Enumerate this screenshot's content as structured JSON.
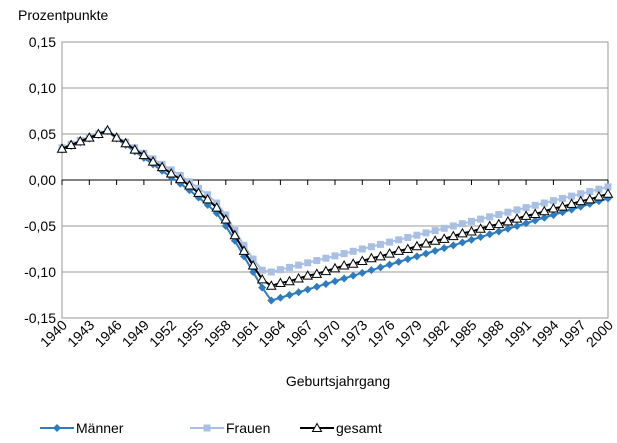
{
  "chart_data": {
    "type": "line",
    "ylabel": "Prozentpunkte",
    "xlabel": "Geburtsjahrgang",
    "x": [
      1940,
      1941,
      1942,
      1943,
      1944,
      1945,
      1946,
      1947,
      1948,
      1949,
      1950,
      1951,
      1952,
      1953,
      1954,
      1955,
      1956,
      1957,
      1958,
      1959,
      1960,
      1961,
      1962,
      1963,
      1964,
      1965,
      1966,
      1967,
      1968,
      1969,
      1970,
      1971,
      1972,
      1973,
      1974,
      1975,
      1976,
      1977,
      1978,
      1979,
      1980,
      1981,
      1982,
      1983,
      1984,
      1985,
      1986,
      1987,
      1988,
      1989,
      1990,
      1991,
      1992,
      1993,
      1994,
      1995,
      1996,
      1997,
      1998,
      1999,
      2000
    ],
    "series": [
      {
        "name": "Männer",
        "color": "#2e7cbf",
        "marker": "diamond",
        "values": [
          0.033,
          0.037,
          0.041,
          0.045,
          0.049,
          0.053,
          0.045,
          0.038,
          0.031,
          0.024,
          0.017,
          0.01,
          0.003,
          -0.004,
          -0.011,
          -0.019,
          -0.027,
          -0.036,
          -0.05,
          -0.066,
          -0.083,
          -0.1,
          -0.117,
          -0.131,
          -0.128,
          -0.125,
          -0.122,
          -0.119,
          -0.116,
          -0.113,
          -0.11,
          -0.107,
          -0.104,
          -0.101,
          -0.098,
          -0.095,
          -0.092,
          -0.089,
          -0.086,
          -0.083,
          -0.08,
          -0.077,
          -0.074,
          -0.071,
          -0.068,
          -0.065,
          -0.062,
          -0.059,
          -0.056,
          -0.053,
          -0.05,
          -0.047,
          -0.044,
          -0.041,
          -0.038,
          -0.035,
          -0.032,
          -0.029,
          -0.026,
          -0.023,
          -0.02
        ]
      },
      {
        "name": "Frauen",
        "color": "#a7c0e3",
        "marker": "square",
        "values": [
          0.035,
          0.039,
          0.043,
          0.047,
          0.05,
          0.053,
          0.047,
          0.041,
          0.035,
          0.029,
          0.023,
          0.017,
          0.011,
          0.005,
          -0.002,
          -0.009,
          -0.016,
          -0.025,
          -0.038,
          -0.055,
          -0.071,
          -0.086,
          -0.098,
          -0.1,
          -0.0975,
          -0.095,
          -0.0925,
          -0.09,
          -0.0875,
          -0.085,
          -0.0825,
          -0.08,
          -0.0775,
          -0.075,
          -0.0725,
          -0.07,
          -0.0675,
          -0.065,
          -0.0625,
          -0.06,
          -0.0575,
          -0.055,
          -0.0525,
          -0.05,
          -0.0475,
          -0.045,
          -0.0425,
          -0.04,
          -0.0375,
          -0.035,
          -0.0325,
          -0.03,
          -0.0275,
          -0.025,
          -0.0225,
          -0.02,
          -0.0175,
          -0.015,
          -0.0125,
          -0.01,
          -0.0075
        ]
      },
      {
        "name": "gesamt",
        "color": "#000000",
        "marker": "triangle",
        "values": [
          0.034,
          0.038,
          0.042,
          0.046,
          0.05,
          0.054,
          0.046,
          0.04,
          0.033,
          0.027,
          0.02,
          0.014,
          0.007,
          0.001,
          -0.006,
          -0.014,
          -0.021,
          -0.03,
          -0.043,
          -0.06,
          -0.077,
          -0.093,
          -0.108,
          -0.115,
          -0.112,
          -0.11,
          -0.107,
          -0.104,
          -0.102,
          -0.099,
          -0.096,
          -0.093,
          -0.091,
          -0.088,
          -0.085,
          -0.083,
          -0.08,
          -0.077,
          -0.075,
          -0.072,
          -0.069,
          -0.066,
          -0.064,
          -0.061,
          -0.058,
          -0.056,
          -0.053,
          -0.05,
          -0.048,
          -0.045,
          -0.042,
          -0.039,
          -0.037,
          -0.034,
          -0.031,
          -0.029,
          -0.026,
          -0.023,
          -0.021,
          -0.018,
          -0.015
        ]
      }
    ],
    "xlim": [
      1940,
      2000
    ],
    "xticks": [
      1940,
      1943,
      1946,
      1949,
      1952,
      1955,
      1958,
      1961,
      1964,
      1967,
      1970,
      1973,
      1976,
      1979,
      1982,
      1985,
      1988,
      1991,
      1994,
      1997,
      2000
    ],
    "ylim": [
      -0.15,
      0.15
    ],
    "yticks": [
      {
        "value": -0.15,
        "label": "-0,15"
      },
      {
        "value": -0.1,
        "label": "-0,10"
      },
      {
        "value": -0.05,
        "label": "-0,05"
      },
      {
        "value": 0,
        "label": "0,00"
      },
      {
        "value": 0.05,
        "label": "0,05"
      },
      {
        "value": 0.1,
        "label": "0,10"
      },
      {
        "value": 0.15,
        "label": "0,15"
      }
    ],
    "grid": true,
    "legend": "bottom"
  }
}
